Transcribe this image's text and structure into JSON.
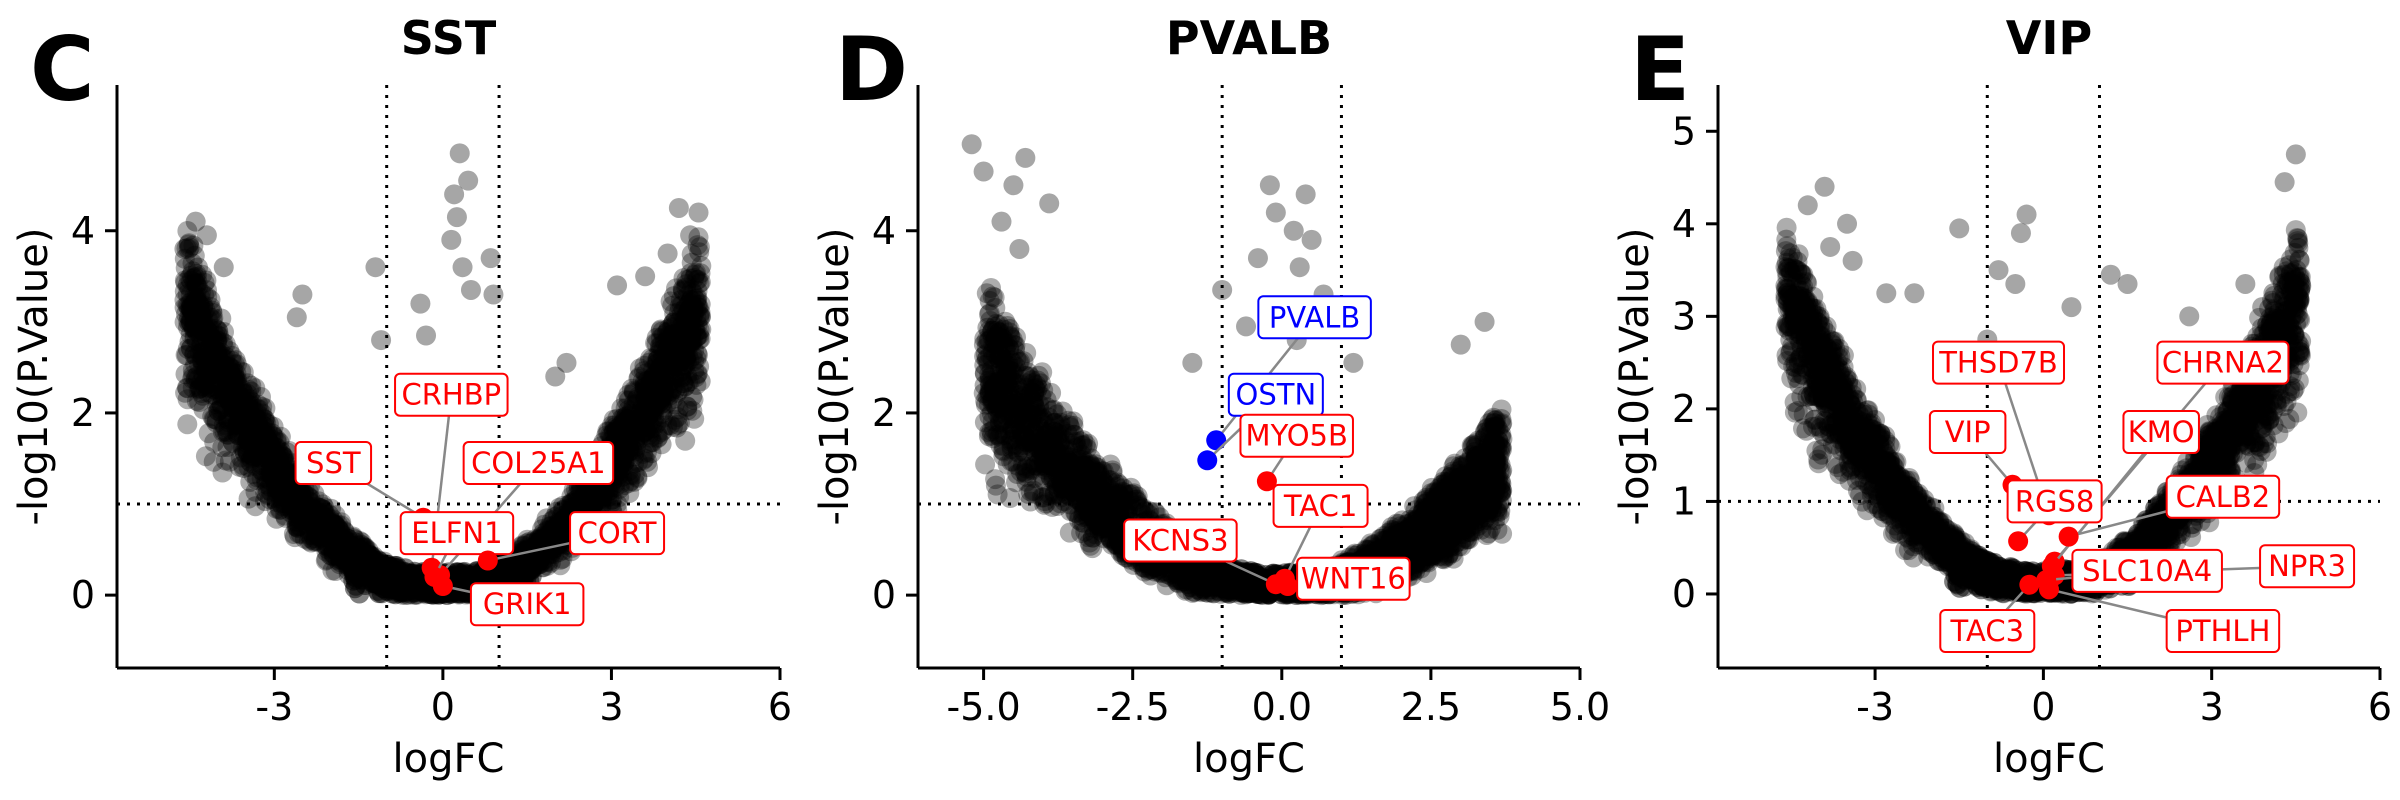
{
  "chart_data": [
    {
      "panel": "C",
      "title": "SST",
      "type": "scatter",
      "xlabel": "logFC",
      "ylabel": "-log10(P.Value)",
      "xlim": [
        -5.8,
        6.0
      ],
      "ylim": [
        -0.8,
        5.6
      ],
      "xticks": [
        -3,
        0,
        3,
        6
      ],
      "xtick_labels": [
        "-3",
        "0",
        "3",
        "6"
      ],
      "yticks": [
        0,
        2,
        4
      ],
      "ytick_labels": [
        "0",
        "2",
        "4"
      ],
      "vlines": [
        -1,
        1
      ],
      "hline": 1,
      "cloud": {
        "a": 0.17,
        "b": 0.14,
        "xmin": -4.6,
        "xmax": 4.6,
        "n": 2600,
        "seed": 11
      },
      "outliers": [
        {
          "x": -4.4,
          "y": 4.1
        },
        {
          "x": -4.6,
          "y": 3.8
        },
        {
          "x": -4.2,
          "y": 3.95
        },
        {
          "x": -3.9,
          "y": 3.6
        },
        {
          "x": -4.1,
          "y": 3.1
        },
        {
          "x": 4.2,
          "y": 4.25
        },
        {
          "x": 4.55,
          "y": 4.2
        },
        {
          "x": 4.4,
          "y": 3.95
        },
        {
          "x": 4.0,
          "y": 3.75
        },
        {
          "x": 3.6,
          "y": 3.5
        },
        {
          "x": 0.3,
          "y": 4.85
        },
        {
          "x": 0.2,
          "y": 4.4
        },
        {
          "x": 0.25,
          "y": 4.15
        },
        {
          "x": 0.45,
          "y": 4.55
        },
        {
          "x": 0.15,
          "y": 3.9
        },
        {
          "x": 0.35,
          "y": 3.6
        },
        {
          "x": 0.5,
          "y": 3.35
        },
        {
          "x": 0.85,
          "y": 3.7
        },
        {
          "x": 0.9,
          "y": 3.3
        },
        {
          "x": -1.2,
          "y": 3.6
        },
        {
          "x": -2.6,
          "y": 3.05
        },
        {
          "x": -2.5,
          "y": 3.3
        },
        {
          "x": -1.1,
          "y": 2.8
        },
        {
          "x": 3.1,
          "y": 3.4
        },
        {
          "x": -0.4,
          "y": 3.2
        },
        {
          "x": -0.3,
          "y": 2.85
        },
        {
          "x": 2.2,
          "y": 2.55
        },
        {
          "x": 2.0,
          "y": 2.4
        }
      ],
      "genes": [
        {
          "name": "CRHBP",
          "x": -0.2,
          "y": 0.3,
          "color": "#ff0000",
          "label_x": 0.15,
          "label_y": 2.2
        },
        {
          "name": "SST",
          "x": -0.35,
          "y": 0.85,
          "color": "#ff0000",
          "label_x": -1.95,
          "label_y": 1.45
        },
        {
          "name": "COL25A1",
          "x": -0.05,
          "y": 0.22,
          "color": "#ff0000",
          "label_x": 1.7,
          "label_y": 1.45
        },
        {
          "name": "ELFN1",
          "x": -0.15,
          "y": 0.2,
          "color": "#ff0000",
          "label_x": 0.25,
          "label_y": 0.68
        },
        {
          "name": "CORT",
          "x": 0.8,
          "y": 0.38,
          "color": "#ff0000",
          "label_x": 3.1,
          "label_y": 0.68
        },
        {
          "name": "GRIK1",
          "x": 0.0,
          "y": 0.1,
          "color": "#ff0000",
          "label_x": 1.5,
          "label_y": -0.1
        }
      ]
    },
    {
      "panel": "D",
      "title": "PVALB",
      "type": "scatter",
      "xlabel": "logFC",
      "ylabel": "-log10(P.Value)",
      "xlim": [
        -6.1,
        5.0
      ],
      "ylim": [
        -0.8,
        5.6
      ],
      "xticks": [
        -5.0,
        -2.5,
        0.0,
        2.5,
        5.0
      ],
      "xtick_labels": [
        "-5.0",
        "-2.5",
        "0.0",
        "2.5",
        "5.0"
      ],
      "yticks": [
        0,
        2,
        4
      ],
      "ytick_labels": [
        "0",
        "2",
        "4"
      ],
      "vlines": [
        -1,
        1
      ],
      "hline": 1,
      "cloud": {
        "a": 0.11,
        "b": 0.2,
        "xmin": -5.0,
        "xmax": 3.7,
        "n": 2600,
        "seed": 23
      },
      "outliers": [
        {
          "x": -5.2,
          "y": 4.95
        },
        {
          "x": -5.0,
          "y": 4.65
        },
        {
          "x": -4.3,
          "y": 4.8
        },
        {
          "x": -4.5,
          "y": 4.5
        },
        {
          "x": -4.7,
          "y": 4.1
        },
        {
          "x": -3.9,
          "y": 4.3
        },
        {
          "x": -4.4,
          "y": 3.8
        },
        {
          "x": -0.2,
          "y": 4.5
        },
        {
          "x": -0.1,
          "y": 4.2
        },
        {
          "x": 0.4,
          "y": 4.4
        },
        {
          "x": 0.2,
          "y": 4.0
        },
        {
          "x": 0.5,
          "y": 3.9
        },
        {
          "x": 0.3,
          "y": 3.6
        },
        {
          "x": -0.4,
          "y": 3.7
        },
        {
          "x": -1.0,
          "y": 3.35
        },
        {
          "x": 0.7,
          "y": 3.3
        },
        {
          "x": 1.2,
          "y": 2.55
        },
        {
          "x": 3.4,
          "y": 3.0
        },
        {
          "x": 3.0,
          "y": 2.75
        },
        {
          "x": -1.5,
          "y": 2.55
        },
        {
          "x": -0.6,
          "y": 2.95
        },
        {
          "x": 0.0,
          "y": 3.15
        },
        {
          "x": 0.25,
          "y": 2.8
        }
      ],
      "genes": [
        {
          "name": "PVALB",
          "x": -1.1,
          "y": 1.7,
          "color": "#0000ff",
          "label_x": 0.55,
          "label_y": 3.05
        },
        {
          "name": "OSTN",
          "x": -1.25,
          "y": 1.48,
          "color": "#0000ff",
          "label_x": -0.1,
          "label_y": 2.2
        },
        {
          "name": "MYO5B",
          "x": -0.25,
          "y": 1.25,
          "color": "#ff0000",
          "label_x": 0.25,
          "label_y": 1.75
        },
        {
          "name": "TAC1",
          "x": 0.05,
          "y": 0.18,
          "color": "#ff0000",
          "label_x": 0.65,
          "label_y": 0.98
        },
        {
          "name": "KCNS3",
          "x": -0.1,
          "y": 0.12,
          "color": "#ff0000",
          "label_x": -1.7,
          "label_y": 0.6
        },
        {
          "name": "WNT16",
          "x": 0.1,
          "y": 0.1,
          "color": "#ff0000",
          "label_x": 1.2,
          "label_y": 0.18
        }
      ]
    },
    {
      "panel": "E",
      "title": "VIP",
      "type": "scatter",
      "xlabel": "logFC",
      "ylabel": "-log10(P.Value)",
      "xlim": [
        -5.8,
        6.0
      ],
      "ylim": [
        -0.8,
        5.5
      ],
      "xticks": [
        -3,
        0,
        3,
        6
      ],
      "xtick_labels": [
        "-3",
        "0",
        "3",
        "6"
      ],
      "yticks": [
        0,
        1,
        2,
        3,
        4,
        5
      ],
      "ytick_labels": [
        "0",
        "1",
        "2",
        "3",
        "4",
        "5"
      ],
      "vlines": [
        -1,
        1
      ],
      "hline": 1,
      "cloud": {
        "a": 0.17,
        "b": 0.14,
        "xmin": -4.6,
        "xmax": 4.6,
        "n": 2600,
        "seed": 37
      },
      "outliers": [
        {
          "x": -4.2,
          "y": 4.2
        },
        {
          "x": -3.9,
          "y": 4.4
        },
        {
          "x": -3.8,
          "y": 3.75
        },
        {
          "x": -3.5,
          "y": 4.0
        },
        {
          "x": -3.4,
          "y": 3.6
        },
        {
          "x": 4.5,
          "y": 4.75
        },
        {
          "x": 4.3,
          "y": 4.45
        },
        {
          "x": -0.3,
          "y": 4.1
        },
        {
          "x": -0.4,
          "y": 3.9
        },
        {
          "x": -0.5,
          "y": 3.35
        },
        {
          "x": -1.5,
          "y": 3.95
        },
        {
          "x": -0.8,
          "y": 3.5
        },
        {
          "x": 1.2,
          "y": 3.45
        },
        {
          "x": 1.5,
          "y": 3.35
        },
        {
          "x": -2.3,
          "y": 3.25
        },
        {
          "x": -2.8,
          "y": 3.25
        },
        {
          "x": 0.5,
          "y": 3.1
        },
        {
          "x": 2.6,
          "y": 3.0
        },
        {
          "x": 3.6,
          "y": 3.35
        },
        {
          "x": 4.1,
          "y": 3.25
        },
        {
          "x": 3.9,
          "y": 3.1
        },
        {
          "x": -1.0,
          "y": 2.75
        }
      ],
      "genes": [
        {
          "name": "THSD7B",
          "x": 0.1,
          "y": 0.85,
          "color": "#ff0000",
          "label_x": -0.8,
          "label_y": 2.5
        },
        {
          "name": "CHRNA2",
          "x": 0.2,
          "y": 0.35,
          "color": "#ff0000",
          "label_x": 3.2,
          "label_y": 2.5
        },
        {
          "name": "VIP",
          "x": -0.55,
          "y": 1.18,
          "color": "#ff0000",
          "label_x": -1.35,
          "label_y": 1.75
        },
        {
          "name": "KMO",
          "x": 0.15,
          "y": 0.3,
          "color": "#ff0000",
          "label_x": 2.1,
          "label_y": 1.75
        },
        {
          "name": "RGS8",
          "x": -0.45,
          "y": 0.57,
          "color": "#ff0000",
          "label_x": 0.2,
          "label_y": 1.0
        },
        {
          "name": "CALB2",
          "x": 0.45,
          "y": 0.62,
          "color": "#ff0000",
          "label_x": 3.2,
          "label_y": 1.05
        },
        {
          "name": "NPR3",
          "x": 0.2,
          "y": 0.2,
          "color": "#ff0000",
          "label_x": 4.7,
          "label_y": 0.3
        },
        {
          "name": "SLC10A4",
          "x": 0.05,
          "y": 0.15,
          "color": "#ff0000",
          "label_x": 1.85,
          "label_y": 0.25
        },
        {
          "name": "TAC3",
          "x": -0.25,
          "y": 0.1,
          "color": "#ff0000",
          "label_x": -1.0,
          "label_y": -0.4
        },
        {
          "name": "PTHLH",
          "x": 0.1,
          "y": 0.05,
          "color": "#ff0000",
          "label_x": 3.2,
          "label_y": -0.4
        }
      ]
    }
  ]
}
